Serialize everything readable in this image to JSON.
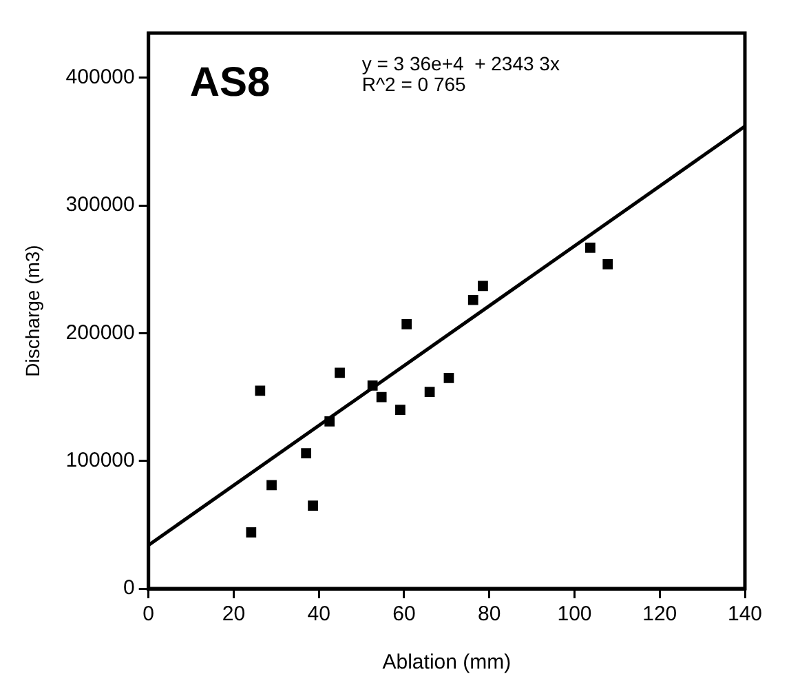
{
  "chart_data": {
    "type": "scatter",
    "title": "AS8",
    "xlabel": "Ablation (mm)",
    "ylabel": "Discharge (m3)",
    "annotations": [
      "y = 3 36e+4  + 2343 3x",
      "R^2 = 0 765"
    ],
    "xlim": [
      0,
      140
    ],
    "xticks": [
      0,
      20,
      40,
      60,
      80,
      100,
      120,
      140
    ],
    "ylim": [
      0,
      435000
    ],
    "yticks": [
      0,
      100000,
      200000,
      300000,
      400000
    ],
    "grid": false,
    "legend": false,
    "marker": "square",
    "series": [
      {
        "type": "scatter",
        "color": "#000000",
        "x": [
          24.1,
          26.2,
          28.9,
          37,
          38.6,
          42.5,
          44.9,
          52.6,
          54.7,
          59.1,
          60.6,
          66,
          70.5,
          76.2,
          78.5,
          103.7,
          107.8
        ],
        "values": [
          44000,
          155000,
          81000,
          106000,
          65000,
          131000,
          169000,
          159000,
          150000,
          140000,
          207000,
          154000,
          165000,
          226000,
          237000,
          267000,
          254000
        ]
      },
      {
        "type": "line",
        "color": "#000000",
        "x": [
          0,
          140
        ],
        "values": [
          34000,
          362000
        ],
        "marker": "none"
      }
    ]
  }
}
